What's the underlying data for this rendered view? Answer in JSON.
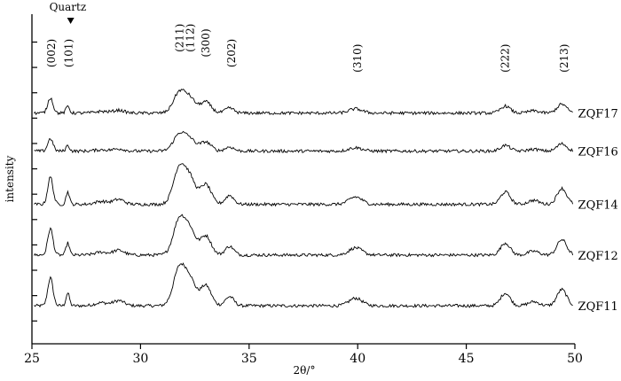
{
  "chart_data": {
    "type": "line",
    "xlabel": "2θ/°",
    "ylabel": "intensity",
    "xlim": [
      25,
      50
    ],
    "xticks": [
      25,
      30,
      35,
      40,
      45,
      50
    ],
    "grid": false,
    "legend": "none",
    "series_labels": [
      "ZQF17",
      "ZQF16",
      "ZQF14",
      "ZQF12",
      "ZQF11"
    ],
    "peaks": [
      {
        "label": "(002)",
        "x": 25.9,
        "y": 4.8
      },
      {
        "label": "(211)",
        "x": 31.8,
        "y": 5.1
      },
      {
        "label": "(112)",
        "x": 32.3,
        "y": 5.1
      },
      {
        "label": "(300)",
        "x": 33.0,
        "y": 5.0
      },
      {
        "label": "(202)",
        "x": 34.2,
        "y": 4.8
      },
      {
        "label": "(310)",
        "x": 40.0,
        "y": 4.7
      },
      {
        "label": "(222)",
        "x": 46.8,
        "y": 4.7
      },
      {
        "label": "(213)",
        "x": 49.5,
        "y": 4.7
      }
    ],
    "quartz": {
      "label": "Quartz",
      "marker_label": "(101)",
      "x": 26.7,
      "y": 4.8
    },
    "series": [
      {
        "name": "ZQF11",
        "offset": 0.0,
        "scale": 1.0
      },
      {
        "name": "ZQF12",
        "offset": 1.0,
        "scale": 0.95
      },
      {
        "name": "ZQF14",
        "offset": 2.0,
        "scale": 0.98
      },
      {
        "name": "ZQF16",
        "offset": 3.05,
        "scale": 0.45
      },
      {
        "name": "ZQF17",
        "offset": 3.8,
        "scale": 0.55
      }
    ],
    "peak_profile": [
      {
        "x": 25.85,
        "h": 0.55,
        "w": 0.12
      },
      {
        "x": 26.65,
        "h": 0.25,
        "w": 0.08
      },
      {
        "x": 28.2,
        "h": 0.06,
        "w": 0.3
      },
      {
        "x": 29.0,
        "h": 0.1,
        "w": 0.25
      },
      {
        "x": 31.8,
        "h": 0.75,
        "w": 0.28
      },
      {
        "x": 32.3,
        "h": 0.45,
        "w": 0.25
      },
      {
        "x": 33.0,
        "h": 0.4,
        "w": 0.25
      },
      {
        "x": 34.1,
        "h": 0.18,
        "w": 0.2
      },
      {
        "x": 39.9,
        "h": 0.15,
        "w": 0.3
      },
      {
        "x": 46.8,
        "h": 0.25,
        "w": 0.22
      },
      {
        "x": 48.1,
        "h": 0.08,
        "w": 0.25
      },
      {
        "x": 49.4,
        "h": 0.32,
        "w": 0.22
      }
    ]
  }
}
